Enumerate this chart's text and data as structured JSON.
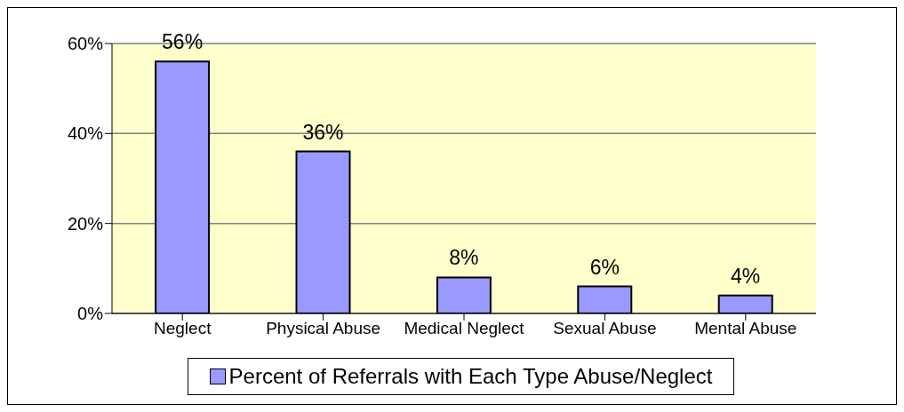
{
  "chart_data": {
    "type": "bar",
    "categories": [
      "Neglect",
      "Physical Abuse",
      "Medical Neglect",
      "Sexual Abuse",
      "Mental Abuse"
    ],
    "series": [
      {
        "name": "Percent of Referrals with Each Type Abuse/Neglect",
        "color": "#9999ff",
        "values": [
          56,
          36,
          8,
          6,
          4
        ],
        "value_labels": [
          "56%",
          "36%",
          "8%",
          "6%",
          "4%"
        ]
      }
    ],
    "ylim": [
      0,
      60
    ],
    "yticks": [
      {
        "value": 0,
        "label": "0%"
      },
      {
        "value": 20,
        "label": "20%"
      },
      {
        "value": 40,
        "label": "40%"
      },
      {
        "value": 60,
        "label": "60%"
      }
    ],
    "grid": "y",
    "legend": "bottom"
  }
}
